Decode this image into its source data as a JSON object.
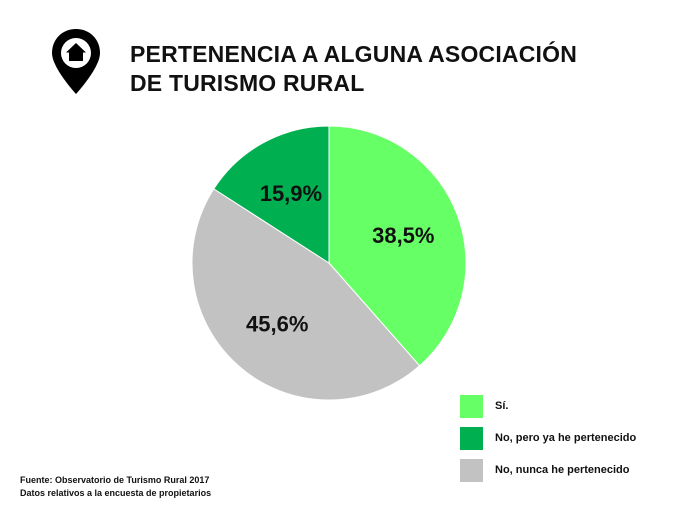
{
  "title": {
    "line1": "PERTENENCIA A ALGUNA ASOCIACIÓN",
    "line2": "DE TURISMO RURAL"
  },
  "icon": "home-location-pin-icon",
  "chart_data": {
    "type": "pie",
    "slices": [
      {
        "name": "Sí.",
        "value": 38.5,
        "label": "38,5%",
        "color": "#66ff66"
      },
      {
        "name": "No, nunca he pertenecido",
        "value": 45.6,
        "label": "45,6%",
        "color": "#c2c2c2"
      },
      {
        "name": "No, pero ya he pertenecido",
        "value": 15.9,
        "label": "15,9%",
        "color": "#00b050"
      }
    ],
    "legend": [
      {
        "name": "Sí.",
        "color": "#66ff66"
      },
      {
        "name": "No, pero ya he pertenecido",
        "color": "#00b050"
      },
      {
        "name": "No, nunca he pertenecido",
        "color": "#c2c2c2"
      }
    ],
    "legend_position": "bottom-right"
  },
  "source": {
    "line1": "Fuente: Observatorio de Turismo Rural 2017",
    "line2": "Datos relativos a la encuesta de propietarios"
  }
}
